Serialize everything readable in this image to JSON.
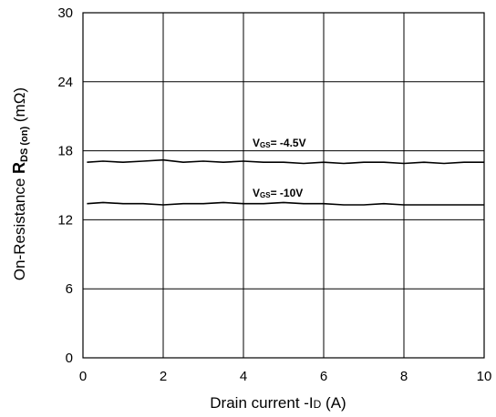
{
  "chart_data": {
    "type": "line",
    "title": "",
    "xlabel": "Drain current -ID (A)",
    "xlabel_parts": {
      "pre": "Drain current -I",
      "sub": "D",
      "post": " (A)"
    },
    "ylabel": "On-Resistance RDS(on) (mΩ)",
    "ylabel_parts": {
      "pre": "On-Resistance ",
      "main": "R",
      "sub": "DS (on)",
      "post": " (mΩ)"
    },
    "xlim": [
      0,
      10
    ],
    "ylim": [
      0,
      30
    ],
    "xticks": [
      "0",
      "2",
      "4",
      "6",
      "8",
      "10"
    ],
    "yticks": [
      "0",
      "6",
      "12",
      "18",
      "24",
      "30"
    ],
    "grid": true,
    "legend": "none",
    "series": [
      {
        "annotation": {
          "pre": "V",
          "sub": "GS",
          "post": "= -4.5V"
        },
        "x": [
          0.1,
          0.5,
          1.0,
          1.5,
          2.0,
          2.5,
          3.0,
          3.5,
          4.0,
          4.5,
          5.0,
          5.5,
          6.0,
          6.5,
          7.0,
          7.5,
          8.0,
          8.5,
          9.0,
          9.5,
          10.0
        ],
        "y": [
          17.0,
          17.1,
          17.0,
          17.1,
          17.2,
          17.0,
          17.1,
          17.0,
          17.1,
          17.0,
          17.0,
          16.9,
          17.0,
          16.9,
          17.0,
          17.0,
          16.9,
          17.0,
          16.9,
          17.0,
          17.0
        ]
      },
      {
        "annotation": {
          "pre": "V",
          "sub": "GS",
          "post": "= -10V"
        },
        "x": [
          0.1,
          0.5,
          1.0,
          1.5,
          2.0,
          2.5,
          3.0,
          3.5,
          4.0,
          4.5,
          5.0,
          5.5,
          6.0,
          6.5,
          7.0,
          7.5,
          8.0,
          8.5,
          9.0,
          9.5,
          10.0
        ],
        "y": [
          13.4,
          13.5,
          13.4,
          13.4,
          13.3,
          13.4,
          13.4,
          13.5,
          13.4,
          13.4,
          13.5,
          13.4,
          13.4,
          13.3,
          13.3,
          13.4,
          13.3,
          13.3,
          13.3,
          13.3,
          13.3
        ]
      }
    ]
  }
}
